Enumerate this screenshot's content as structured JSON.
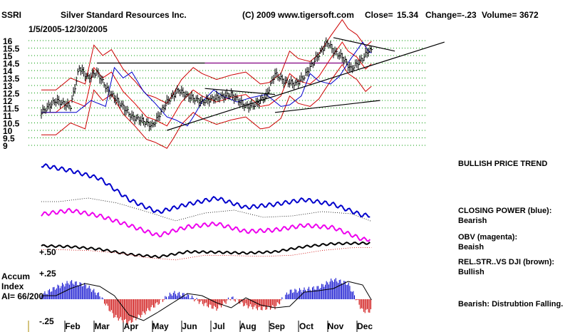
{
  "header": {
    "ticker": "SSRI",
    "company": "Silver Standard Resources Inc.",
    "copyright": "(C) 2009 www.tigersoft.com",
    "close_label": "Close=",
    "close_value": "15.34",
    "change_label": "Change=",
    "change_value": "-.23",
    "volume_label": "Volume=",
    "volume_value": "3672",
    "date_range": "1/5/2005-12/30/2005"
  },
  "side_labels": {
    "trend": "BULLISH PRICE TREND",
    "closing_power_title": "CLOSING POWER (blue):",
    "closing_power_value": "Bearish",
    "obv_title": "OBV (magenta):",
    "obv_value": "Beaish",
    "relstr_title": "REL.STR..VS DJI (brown):",
    "relstr_value": "Bullish",
    "accum_note": "Bearish: Distrubtion Falling."
  },
  "indicator_labels": {
    "plus50": "+.50",
    "plus25": "+.25",
    "accum_line1": "Accum",
    "accum_line2": "Index",
    "ai": "AI= 66/200",
    "minus25": "-.25"
  },
  "colors": {
    "price_bars": "#000000",
    "bands": "#cc0000",
    "ma21": "#dd0000",
    "ma50": "#0000cc",
    "closing_power": "#0000cc",
    "obv": "#ee00ee",
    "relstr": "#000000",
    "accum_pos": "#0000cc",
    "accum_neg": "#cc0000",
    "grid": "#009900",
    "resistance": "#000000",
    "resistance_purple": "#800080"
  },
  "chart_data": {
    "type": "line",
    "title": "Silver Standard Resources Inc.",
    "xlabel": "",
    "ylabel": "",
    "x_ticks": [
      "Feb",
      "Mar",
      "Apr",
      "May",
      "Jun",
      "Jul",
      "Aug",
      "Sep",
      "Oct",
      "Nov",
      "Dec"
    ],
    "y_ticks": [
      9,
      9.5,
      10,
      10.5,
      11,
      11.5,
      12,
      12.5,
      13,
      13.5,
      14,
      14.5,
      15,
      15.5,
      16
    ],
    "ylim": [
      9,
      16.3
    ],
    "grid": true,
    "price_months": [
      1,
      1.5,
      2,
      2.3,
      2.6,
      2.9,
      3.3,
      3.7,
      4.1,
      4.4,
      4.8,
      5,
      5.3,
      5.7,
      6,
      6.5,
      7,
      7.5,
      8,
      8.3,
      8.7,
      9,
      9.3,
      9.7,
      10,
      10.4,
      10.8,
      11,
      11.3,
      11.6,
      12,
      12.2
    ],
    "price_close": [
      11.2,
      12,
      11.6,
      14.2,
      13.5,
      13.9,
      12.6,
      11.8,
      10.9,
      10.7,
      10.3,
      10.9,
      11.9,
      12.7,
      12.3,
      11.9,
      12.2,
      12.4,
      11.6,
      11.7,
      12.3,
      13.8,
      13.3,
      13.1,
      13.6,
      14.8,
      15.9,
      15.3,
      14.9,
      14.1,
      14.8,
      15.34
    ],
    "series": [
      {
        "name": "CLOSING POWER",
        "months": [
          1,
          2,
          3,
          4,
          5,
          6,
          7,
          8,
          9,
          10,
          11,
          12
        ],
        "values": [
          0.62,
          0.55,
          0.45,
          0.18,
          0.02,
          0.12,
          0.2,
          0.08,
          0.12,
          0.18,
          0.12,
          -0.02
        ]
      },
      {
        "name": "OBV",
        "months": [
          1,
          2,
          3,
          4,
          5,
          6,
          7,
          8,
          9,
          10,
          11,
          12
        ],
        "values": [
          0.22,
          0.27,
          0.2,
          0.08,
          -0.05,
          0.06,
          0.1,
          0.0,
          0.02,
          0.08,
          0.05,
          -0.1
        ]
      },
      {
        "name": "REL.STR..VS DJI",
        "months": [
          1,
          2,
          3,
          4,
          5,
          6,
          7,
          8,
          9,
          10,
          11,
          12
        ],
        "values": [
          0.5,
          0.48,
          0.42,
          0.3,
          0.24,
          0.36,
          0.35,
          0.33,
          0.36,
          0.48,
          0.55,
          0.56
        ]
      },
      {
        "name": "Accum Index",
        "months": [
          1,
          1.5,
          2,
          2.5,
          3,
          3.5,
          4,
          4.5,
          5,
          5.5,
          6,
          6.5,
          7,
          7.5,
          8,
          8.5,
          9,
          9.5,
          10,
          10.5,
          11,
          11.5,
          12
        ],
        "values": [
          0.05,
          0.15,
          0.22,
          0.18,
          0.05,
          -0.22,
          -0.3,
          -0.18,
          -0.05,
          0.08,
          0.05,
          -0.05,
          -0.12,
          0.02,
          -0.08,
          -0.12,
          -0.1,
          0.1,
          0.12,
          0.15,
          0.25,
          0.2,
          -0.15
        ]
      }
    ]
  }
}
